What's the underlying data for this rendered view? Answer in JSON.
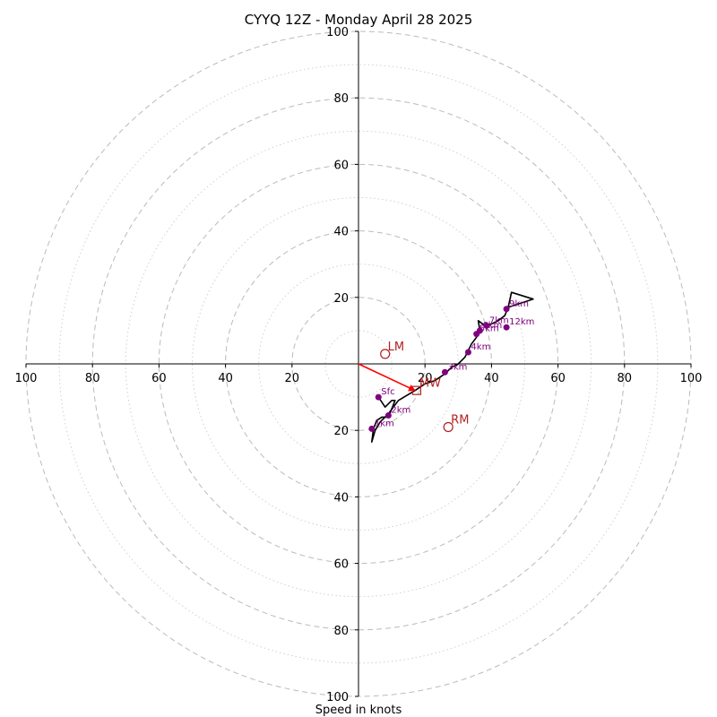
{
  "chart_data": {
    "type": "scatter",
    "title": "CYYQ 12Z - Monday April 28 2025",
    "xlabel": "Speed in knots",
    "xlim": [
      -100,
      100
    ],
    "ylim": [
      -100,
      100
    ],
    "ring_major": [
      20,
      40,
      60,
      80,
      100
    ],
    "ring_minor": [
      10,
      30,
      50,
      70,
      90
    ],
    "x_ticks": [
      {
        "value": -100,
        "label": "100"
      },
      {
        "value": -80,
        "label": "80"
      },
      {
        "value": -60,
        "label": "60"
      },
      {
        "value": -40,
        "label": "40"
      },
      {
        "value": -20,
        "label": "20"
      },
      {
        "value": 20,
        "label": "20"
      },
      {
        "value": 40,
        "label": "40"
      },
      {
        "value": 60,
        "label": "60"
      },
      {
        "value": 80,
        "label": "80"
      },
      {
        "value": 100,
        "label": "100"
      }
    ],
    "y_ticks": [
      {
        "value": 100,
        "label": "100"
      },
      {
        "value": 80,
        "label": "80"
      },
      {
        "value": 60,
        "label": "60"
      },
      {
        "value": 40,
        "label": "40"
      },
      {
        "value": 20,
        "label": "20"
      },
      {
        "value": -20,
        "label": "20"
      },
      {
        "value": -40,
        "label": "40"
      },
      {
        "value": -60,
        "label": "60"
      },
      {
        "value": -80,
        "label": "80"
      },
      {
        "value": -100,
        "label": "100"
      }
    ],
    "hodograph": [
      [
        6,
        -10
      ],
      [
        8,
        -13
      ],
      [
        10,
        -11
      ],
      [
        11,
        -11
      ],
      [
        10,
        -13.5
      ],
      [
        9,
        -16
      ],
      [
        7,
        -16
      ],
      [
        5.5,
        -17
      ],
      [
        4.5,
        -19.5
      ],
      [
        4,
        -23.5
      ],
      [
        5,
        -20
      ],
      [
        6.5,
        -17.5
      ],
      [
        9,
        -15
      ],
      [
        12,
        -11
      ],
      [
        17,
        -8
      ],
      [
        20,
        -6
      ],
      [
        23,
        -5
      ],
      [
        26,
        -3
      ],
      [
        28,
        -1
      ],
      [
        30,
        0
      ],
      [
        32,
        2
      ],
      [
        33,
        4
      ],
      [
        34,
        6
      ],
      [
        35.5,
        8
      ],
      [
        36.5,
        10
      ],
      [
        36,
        13
      ],
      [
        38,
        11.5
      ],
      [
        40,
        12
      ],
      [
        42,
        13
      ],
      [
        44,
        14.5
      ],
      [
        45,
        17
      ],
      [
        46,
        21.5
      ],
      [
        52.5,
        19.5
      ],
      [
        45,
        17
      ]
    ],
    "height_markers": [
      {
        "label": "Sfc",
        "x": 6,
        "y": -10
      },
      {
        "label": "1km",
        "x": 4,
        "y": -19.5
      },
      {
        "label": "2km",
        "x": 9,
        "y": -15.5
      },
      {
        "label": "3km",
        "x": 26,
        "y": -2.5
      },
      {
        "label": "4km",
        "x": 33,
        "y": 3.5
      },
      {
        "label": "5km",
        "x": 35.5,
        "y": 9
      },
      {
        "label": "6km",
        "x": 36.5,
        "y": 10
      },
      {
        "label": "7km",
        "x": 38.5,
        "y": 11.5
      },
      {
        "label": "9km",
        "x": 44.5,
        "y": 16.5
      },
      {
        "label": "12km",
        "x": 44.5,
        "y": 11
      }
    ],
    "storm_motion": [
      {
        "label": "LM",
        "x": 8,
        "y": 3,
        "marker": "circle"
      },
      {
        "label": "RM",
        "x": 27,
        "y": -19,
        "marker": "circle"
      },
      {
        "label": "MW",
        "x": 17.5,
        "y": -8,
        "marker": "square"
      }
    ],
    "motion_vector": {
      "from": [
        0,
        0
      ],
      "to": [
        17,
        -8
      ]
    },
    "colors": {
      "hodograph": "#000000",
      "markers": "#800080",
      "storm_motion": "#b22222",
      "vector": "#ff0000",
      "grid": "#bbbbbb"
    }
  }
}
